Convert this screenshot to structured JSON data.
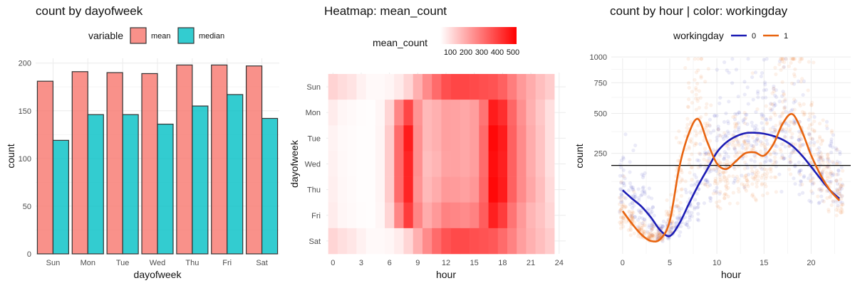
{
  "chart_data": [
    {
      "type": "bar",
      "title": "count by dayofweek",
      "xlabel": "dayofweek",
      "ylabel": "count",
      "legend_title": "variable",
      "legend_position": "top",
      "grid": true,
      "ylim": [
        0,
        205
      ],
      "yticks": [
        0,
        50,
        100,
        150,
        200
      ],
      "categories": [
        "Sun",
        "Mon",
        "Tue",
        "Wed",
        "Thu",
        "Fri",
        "Sat"
      ],
      "series": [
        {
          "name": "mean",
          "color": "#F8766D",
          "values": [
            181,
            191,
            190,
            189,
            198,
            198,
            197
          ]
        },
        {
          "name": "median",
          "color": "#00BFC4",
          "values": [
            119,
            146,
            146,
            136,
            155,
            167,
            142
          ]
        }
      ]
    },
    {
      "type": "heatmap",
      "title": "Heatmap: mean_count",
      "xlabel": "hour",
      "ylabel": "dayofweek",
      "legend_title": "mean_count",
      "legend_position": "top",
      "legend_labels": [
        "100",
        "200",
        "300",
        "400",
        "500"
      ],
      "color_low": "#ffffff",
      "color_high": "#ff0000",
      "value_range": [
        0,
        550
      ],
      "xticks": [
        0,
        3,
        6,
        9,
        12,
        15,
        18,
        21,
        24
      ],
      "x": [
        0,
        1,
        2,
        3,
        4,
        5,
        6,
        7,
        8,
        9,
        10,
        11,
        12,
        13,
        14,
        15,
        16,
        17,
        18,
        19,
        20,
        21,
        22,
        23
      ],
      "y": [
        "Sun",
        "Mon",
        "Tue",
        "Wed",
        "Thu",
        "Fri",
        "Sat"
      ],
      "values": [
        [
          95,
          75,
          60,
          30,
          12,
          12,
          22,
          45,
          90,
          170,
          250,
          320,
          380,
          400,
          400,
          390,
          380,
          370,
          340,
          280,
          220,
          180,
          140,
          110
        ],
        [
          40,
          20,
          12,
          6,
          4,
          20,
          90,
          260,
          400,
          230,
          150,
          170,
          205,
          200,
          190,
          210,
          300,
          490,
          450,
          330,
          240,
          170,
          120,
          70
        ],
        [
          25,
          12,
          8,
          4,
          4,
          22,
          110,
          320,
          490,
          240,
          150,
          170,
          205,
          200,
          190,
          210,
          320,
          530,
          490,
          340,
          250,
          180,
          130,
          70
        ],
        [
          30,
          15,
          8,
          5,
          4,
          22,
          110,
          320,
          470,
          240,
          140,
          160,
          200,
          200,
          190,
          210,
          320,
          520,
          480,
          340,
          250,
          180,
          130,
          70
        ],
        [
          35,
          18,
          10,
          5,
          4,
          22,
          110,
          320,
          470,
          230,
          150,
          180,
          220,
          215,
          205,
          225,
          330,
          530,
          490,
          340,
          250,
          190,
          140,
          80
        ],
        [
          40,
          20,
          12,
          6,
          4,
          20,
          90,
          260,
          420,
          260,
          180,
          220,
          270,
          260,
          250,
          270,
          350,
          480,
          420,
          300,
          220,
          160,
          130,
          90
        ],
        [
          90,
          70,
          55,
          30,
          12,
          12,
          20,
          40,
          90,
          170,
          250,
          320,
          370,
          390,
          390,
          380,
          370,
          360,
          320,
          270,
          210,
          170,
          140,
          110
        ]
      ]
    },
    {
      "type": "scatter",
      "title": "count by hour | color: workingday",
      "xlabel": "hour",
      "ylabel": "count",
      "legend_title": "workingday",
      "legend_position": "top",
      "grid": true,
      "y_scale": "sqrt",
      "xlim": [
        -1.2,
        24.2
      ],
      "ylim": [
        0,
        1000
      ],
      "xticks": [
        0,
        5,
        10,
        15,
        20
      ],
      "yticks": [
        250,
        500,
        750,
        1000
      ],
      "hline": 191,
      "series": [
        {
          "name": "0",
          "color": "#1C1CB4",
          "smooth": [
            [
              0,
              95
            ],
            [
              1,
              70
            ],
            [
              2,
              50
            ],
            [
              3,
              28
            ],
            [
              4,
              10
            ],
            [
              5,
              5
            ],
            [
              6,
              18
            ],
            [
              7,
              55
            ],
            [
              8,
              110
            ],
            [
              9,
              175
            ],
            [
              10,
              255
            ],
            [
              11,
              310
            ],
            [
              12,
              345
            ],
            [
              13,
              365
            ],
            [
              14,
              368
            ],
            [
              15,
              362
            ],
            [
              16,
              348
            ],
            [
              17,
              325
            ],
            [
              18,
              290
            ],
            [
              19,
              240
            ],
            [
              20,
              185
            ],
            [
              21,
              135
            ],
            [
              22,
              95
            ],
            [
              23,
              70
            ]
          ],
          "hourly_median": [
            100,
            75,
            55,
            25,
            8,
            8,
            20,
            45,
            95,
            170,
            250,
            320,
            370,
            390,
            390,
            380,
            370,
            360,
            320,
            270,
            210,
            170,
            140,
            110
          ]
        },
        {
          "name": "1",
          "color": "#E86410",
          "smooth": [
            [
              0,
              40
            ],
            [
              1,
              18
            ],
            [
              2,
              6
            ],
            [
              3,
              2
            ],
            [
              4,
              3
            ],
            [
              5,
              22
            ],
            [
              6,
              180
            ],
            [
              7,
              360
            ],
            [
              8,
              460
            ],
            [
              9,
              310
            ],
            [
              10,
              200
            ],
            [
              11,
              175
            ],
            [
              12,
              210
            ],
            [
              13,
              250
            ],
            [
              14,
              255
            ],
            [
              15,
              238
            ],
            [
              16,
              300
            ],
            [
              17,
              430
            ],
            [
              18,
              495
            ],
            [
              19,
              380
            ],
            [
              20,
              240
            ],
            [
              21,
              150
            ],
            [
              22,
              95
            ],
            [
              23,
              65
            ]
          ],
          "hourly_median": [
            40,
            20,
            10,
            5,
            5,
            25,
            120,
            360,
            560,
            280,
            150,
            170,
            210,
            200,
            190,
            210,
            330,
            580,
            520,
            360,
            260,
            190,
            140,
            80
          ]
        }
      ]
    }
  ]
}
